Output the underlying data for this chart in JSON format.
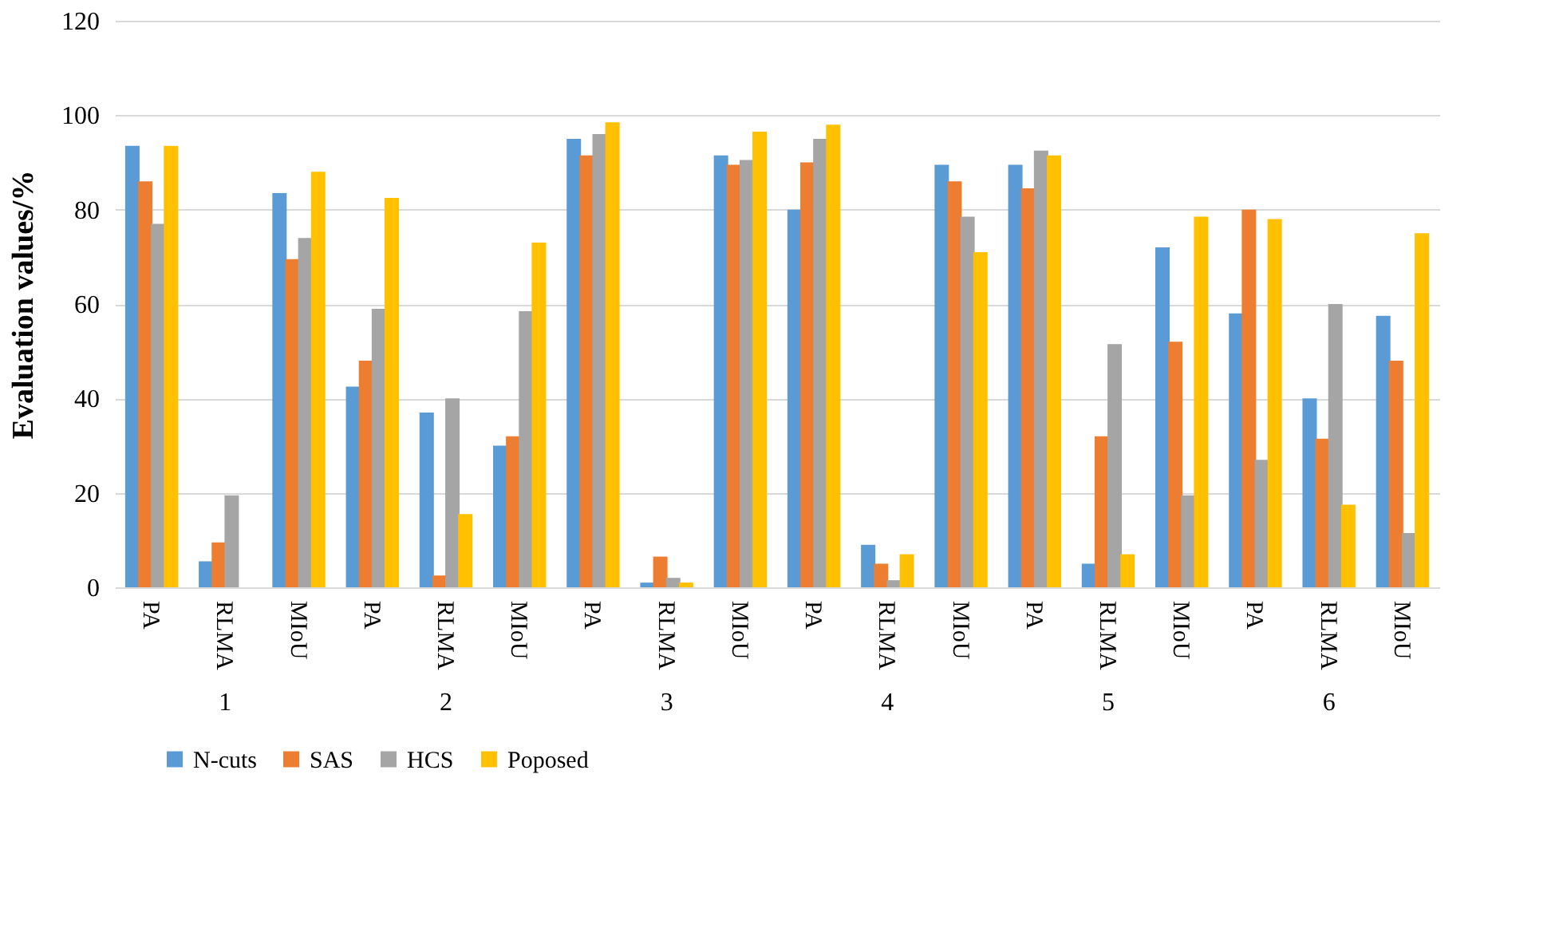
{
  "chart_data": {
    "type": "bar",
    "ylabel": "Evaluation values/%",
    "categories": [
      "PA",
      "RLMA",
      "MIoU",
      "PA",
      "RLMA",
      "MIoU",
      "PA",
      "RLMA",
      "MIoU",
      "PA",
      "RLMA",
      "MIoU",
      "PA",
      "RLMA",
      "MIoU",
      "PA",
      "RLMA",
      "MIoU"
    ],
    "series": [
      {
        "name": "N-cuts",
        "color": "#5b9bd5",
        "values": [
          93.5,
          5.5,
          83.5,
          42.5,
          37,
          30,
          95,
          1,
          91.5,
          80,
          9,
          89.5,
          89.5,
          5,
          72,
          58,
          40,
          57.5
        ]
      },
      {
        "name": "SAS",
        "color": "#ed7d31",
        "values": [
          86,
          9.5,
          69.5,
          48,
          2.5,
          32,
          91.5,
          6.5,
          89.5,
          90,
          5,
          86,
          84.5,
          32,
          52,
          80,
          31.5,
          48
        ]
      },
      {
        "name": "HCS",
        "color": "#a5a5a5",
        "values": [
          77,
          19.5,
          74,
          59,
          40,
          58.5,
          96,
          2,
          90.5,
          95,
          1.5,
          78.5,
          92.5,
          51.5,
          19.5,
          27,
          60,
          11.5
        ]
      },
      {
        "name": "Poposed",
        "color": "#ffc000",
        "values": [
          93.5,
          0,
          88,
          82.5,
          15.5,
          73,
          98.5,
          1,
          96.5,
          98,
          7,
          71,
          91.5,
          7,
          78.5,
          78,
          17.5,
          75
        ]
      }
    ],
    "annotations": [
      "1",
      "2",
      "3",
      "4",
      "5",
      "6"
    ],
    "ylim": [
      0,
      120
    ],
    "yticks": [
      0,
      20,
      40,
      60,
      80,
      100,
      120
    ],
    "grid": "y",
    "legend": "bottom"
  }
}
